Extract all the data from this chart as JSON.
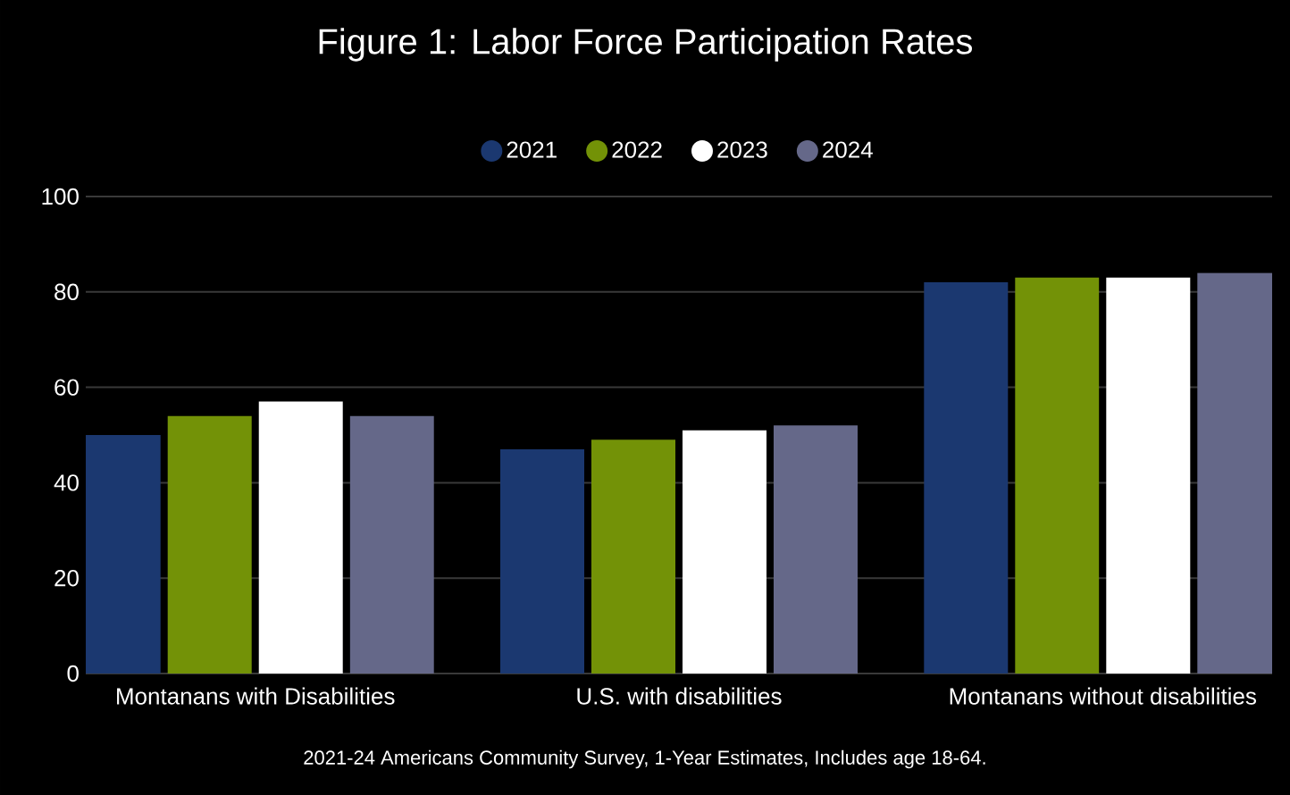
{
  "chart_data": {
    "type": "bar",
    "title": "Figure 1: Labor Force Participation Rates",
    "categories": [
      "Montanans with Disabilities",
      "U.S. with disabilities",
      "Montanans without disabilities"
    ],
    "series": [
      {
        "name": "2021",
        "color": "#1b3870",
        "values": [
          50,
          47,
          82
        ]
      },
      {
        "name": "2022",
        "color": "#739207",
        "values": [
          54,
          49,
          83
        ]
      },
      {
        "name": "2023",
        "color": "#ffffff",
        "values": [
          57,
          51,
          83
        ]
      },
      {
        "name": "2024",
        "color": "#656889",
        "values": [
          54,
          52,
          84
        ]
      }
    ],
    "ylim": [
      0,
      100
    ],
    "yticks": [
      0,
      20,
      40,
      60,
      80,
      100
    ],
    "grid": "y",
    "legend": "top",
    "annotations": [
      "2021-24 Americans Community Survey, 1-Year Estimates, Includes age 18-64."
    ]
  }
}
